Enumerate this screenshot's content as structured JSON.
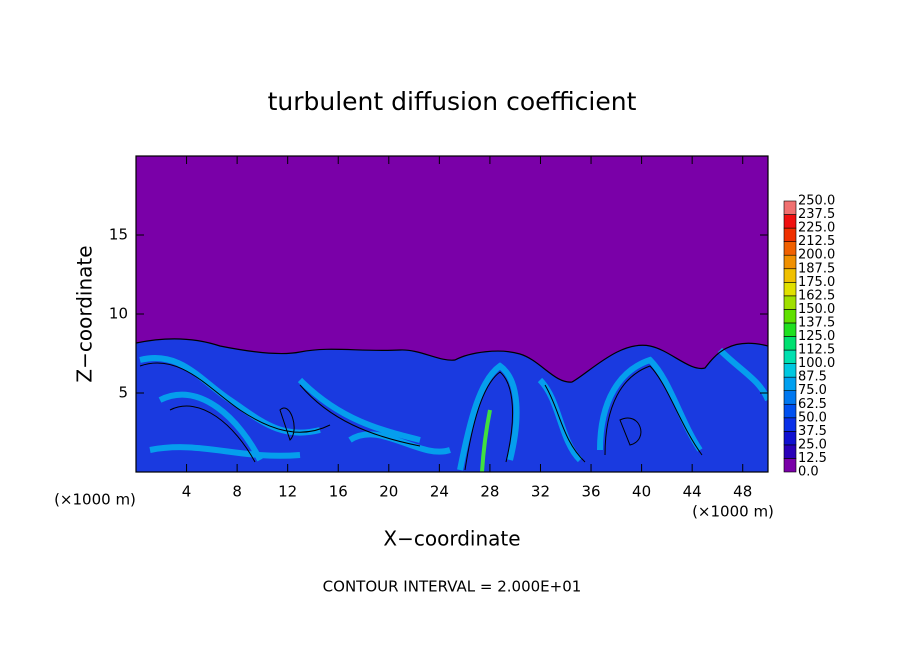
{
  "chart_data": {
    "type": "contour",
    "title": "turbulent diffusion coefficient",
    "x_label": "X−coordinate",
    "y_label": "Z−coordinate",
    "x_unit_label": "(×1000 m)",
    "y_unit_label": "(×1000 m)",
    "annotation": "CONTOUR INTERVAL = 2.000E+01",
    "xlim": [
      0,
      50
    ],
    "ylim": [
      0,
      20
    ],
    "xticks": [
      4,
      8,
      12,
      16,
      20,
      24,
      28,
      32,
      36,
      40,
      44,
      48
    ],
    "yticks": [
      5,
      10,
      15
    ],
    "background_color": "#7a00a8",
    "colorbar": {
      "ticks": [
        {
          "value": 0,
          "label": "0.0"
        },
        {
          "value": 12.5,
          "label": "12.5"
        },
        {
          "value": 25,
          "label": "25.0"
        },
        {
          "value": 37.5,
          "label": "37.5"
        },
        {
          "value": 50,
          "label": "50.0"
        },
        {
          "value": 62.5,
          "label": "62.5"
        },
        {
          "value": 75,
          "label": "75.0"
        },
        {
          "value": 87.5,
          "label": "87.5"
        },
        {
          "value": 100,
          "label": "100.0"
        },
        {
          "value": 112.5,
          "label": "112.5"
        },
        {
          "value": 125,
          "label": "125.0"
        },
        {
          "value": 137.5,
          "label": "137.5"
        },
        {
          "value": 150,
          "label": "150.0"
        },
        {
          "value": 162.5,
          "label": "162.5"
        },
        {
          "value": 175,
          "label": "175.0"
        },
        {
          "value": 187.5,
          "label": "187.5"
        },
        {
          "value": 200,
          "label": "200.0"
        },
        {
          "value": 212.5,
          "label": "212.5"
        },
        {
          "value": 225,
          "label": "225.0"
        },
        {
          "value": 237.5,
          "label": "237.5"
        },
        {
          "value": 250,
          "label": "250.0"
        }
      ],
      "colors": [
        "#7a00a8",
        "#2a00b8",
        "#1010d0",
        "#0a30e8",
        "#0050f0",
        "#0078f0",
        "#00a0f0",
        "#00c8e0",
        "#00e0b0",
        "#00e070",
        "#20e020",
        "#60e000",
        "#a0e000",
        "#e0e000",
        "#f0c000",
        "#f09000",
        "#f06000",
        "#f03000",
        "#f01010",
        "#f07070"
      ]
    }
  }
}
